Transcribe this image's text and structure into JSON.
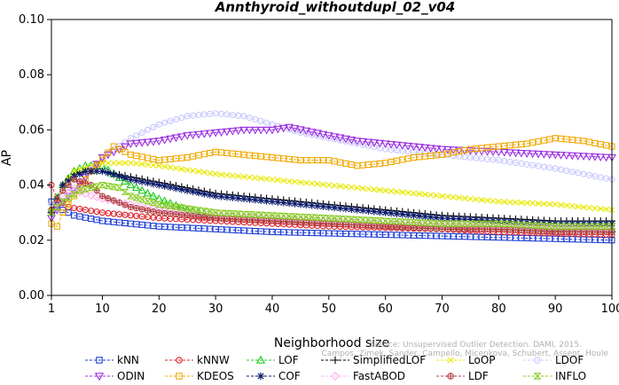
{
  "credit": {
    "line1": "Source: Unsupervised Outlier Detection. DAMI, 2015.",
    "line2": "Campos, Zimek, Sander, Campello, Micenkova, Schubert, Assent, Houle"
  },
  "chart_data": {
    "type": "line",
    "title": "Annthyroid_withoutdupl_02_v04",
    "xlabel": "Neighborhood size",
    "ylabel": "AP",
    "xlim": [
      1,
      100
    ],
    "ylim": [
      0.0,
      0.1
    ],
    "xticks": [
      1,
      10,
      20,
      30,
      40,
      50,
      60,
      70,
      80,
      90,
      100
    ],
    "yticks": [
      "0.00",
      "0.02",
      "0.04",
      "0.06",
      "0.08",
      "0.10"
    ],
    "grid": false,
    "legend_position": "bottom",
    "series": [
      {
        "name": "kNN",
        "color": "#1f3fd6",
        "marker": "square",
        "points": [
          [
            1,
            0.034
          ],
          [
            3,
            0.031
          ],
          [
            5,
            0.029
          ],
          [
            10,
            0.027
          ],
          [
            20,
            0.025
          ],
          [
            30,
            0.024
          ],
          [
            40,
            0.023
          ],
          [
            50,
            0.0225
          ],
          [
            60,
            0.022
          ],
          [
            70,
            0.0215
          ],
          [
            80,
            0.021
          ],
          [
            90,
            0.0205
          ],
          [
            100,
            0.02
          ]
        ]
      },
      {
        "name": "kNNW",
        "color": "#e0202a",
        "marker": "circle",
        "points": [
          [
            1,
            0.04
          ],
          [
            2,
            0.035
          ],
          [
            4,
            0.032
          ],
          [
            10,
            0.03
          ],
          [
            20,
            0.028
          ],
          [
            30,
            0.027
          ],
          [
            40,
            0.026
          ],
          [
            50,
            0.025
          ],
          [
            60,
            0.0245
          ],
          [
            70,
            0.024
          ],
          [
            80,
            0.023
          ],
          [
            90,
            0.0225
          ],
          [
            100,
            0.022
          ]
        ]
      },
      {
        "name": "LOF",
        "color": "#22cc22",
        "marker": "triangle-up",
        "points": [
          [
            1,
            0.031
          ],
          [
            3,
            0.04
          ],
          [
            5,
            0.045
          ],
          [
            7,
            0.047
          ],
          [
            10,
            0.047
          ],
          [
            12,
            0.044
          ],
          [
            15,
            0.04
          ],
          [
            20,
            0.035
          ],
          [
            25,
            0.031
          ],
          [
            30,
            0.029
          ],
          [
            40,
            0.028
          ],
          [
            50,
            0.027
          ],
          [
            60,
            0.026
          ],
          [
            70,
            0.025
          ],
          [
            80,
            0.025
          ],
          [
            90,
            0.024
          ],
          [
            100,
            0.024
          ]
        ]
      },
      {
        "name": "SimplifiedLOF",
        "color": "#000000",
        "marker": "plus",
        "points": [
          [
            1,
            0.03
          ],
          [
            3,
            0.04
          ],
          [
            5,
            0.044
          ],
          [
            7,
            0.045
          ],
          [
            10,
            0.045
          ],
          [
            15,
            0.043
          ],
          [
            20,
            0.041
          ],
          [
            30,
            0.037
          ],
          [
            40,
            0.035
          ],
          [
            50,
            0.033
          ],
          [
            60,
            0.031
          ],
          [
            70,
            0.029
          ],
          [
            80,
            0.028
          ],
          [
            90,
            0.027
          ],
          [
            100,
            0.027
          ]
        ]
      },
      {
        "name": "LoOP",
        "color": "#e8e800",
        "marker": "x",
        "points": [
          [
            1,
            0.031
          ],
          [
            3,
            0.04
          ],
          [
            5,
            0.045
          ],
          [
            10,
            0.048
          ],
          [
            15,
            0.048
          ],
          [
            20,
            0.047
          ],
          [
            30,
            0.044
          ],
          [
            40,
            0.042
          ],
          [
            50,
            0.04
          ],
          [
            60,
            0.038
          ],
          [
            70,
            0.036
          ],
          [
            80,
            0.034
          ],
          [
            90,
            0.033
          ],
          [
            100,
            0.031
          ]
        ]
      },
      {
        "name": "LDOF",
        "color": "#c8c8ff",
        "marker": "circle",
        "points": [
          [
            1,
            0.033
          ],
          [
            5,
            0.039
          ],
          [
            10,
            0.05
          ],
          [
            15,
            0.057
          ],
          [
            20,
            0.062
          ],
          [
            25,
            0.065
          ],
          [
            30,
            0.066
          ],
          [
            35,
            0.065
          ],
          [
            40,
            0.062
          ],
          [
            45,
            0.059
          ],
          [
            50,
            0.057
          ],
          [
            55,
            0.055
          ],
          [
            60,
            0.053
          ],
          [
            65,
            0.052
          ],
          [
            70,
            0.051
          ],
          [
            80,
            0.049
          ],
          [
            90,
            0.046
          ],
          [
            100,
            0.042
          ]
        ]
      },
      {
        "name": "ODIN",
        "color": "#9b30e0",
        "marker": "triangle-down",
        "points": [
          [
            1,
            0.028
          ],
          [
            3,
            0.034
          ],
          [
            5,
            0.038
          ],
          [
            10,
            0.05
          ],
          [
            15,
            0.055
          ],
          [
            20,
            0.056
          ],
          [
            25,
            0.058
          ],
          [
            30,
            0.059
          ],
          [
            35,
            0.06
          ],
          [
            40,
            0.06
          ],
          [
            43,
            0.061
          ],
          [
            50,
            0.058
          ],
          [
            55,
            0.056
          ],
          [
            60,
            0.055
          ],
          [
            70,
            0.053
          ],
          [
            80,
            0.052
          ],
          [
            90,
            0.051
          ],
          [
            100,
            0.05
          ]
        ]
      },
      {
        "name": "KDEOS",
        "color": "#f0a800",
        "marker": "square",
        "points": [
          [
            1,
            0.026
          ],
          [
            2,
            0.025
          ],
          [
            3,
            0.03
          ],
          [
            5,
            0.036
          ],
          [
            8,
            0.045
          ],
          [
            12,
            0.054
          ],
          [
            15,
            0.051
          ],
          [
            20,
            0.049
          ],
          [
            25,
            0.05
          ],
          [
            30,
            0.052
          ],
          [
            35,
            0.051
          ],
          [
            40,
            0.05
          ],
          [
            45,
            0.049
          ],
          [
            50,
            0.049
          ],
          [
            55,
            0.047
          ],
          [
            60,
            0.048
          ],
          [
            65,
            0.05
          ],
          [
            70,
            0.051
          ],
          [
            75,
            0.053
          ],
          [
            80,
            0.054
          ],
          [
            85,
            0.055
          ],
          [
            90,
            0.057
          ],
          [
            95,
            0.056
          ],
          [
            100,
            0.054
          ]
        ]
      },
      {
        "name": "COF",
        "color": "#0a1a6a",
        "marker": "asterisk",
        "points": [
          [
            1,
            0.03
          ],
          [
            3,
            0.04
          ],
          [
            5,
            0.043
          ],
          [
            7,
            0.045
          ],
          [
            10,
            0.045
          ],
          [
            15,
            0.042
          ],
          [
            20,
            0.04
          ],
          [
            30,
            0.036
          ],
          [
            40,
            0.034
          ],
          [
            50,
            0.032
          ],
          [
            60,
            0.03
          ],
          [
            70,
            0.028
          ],
          [
            80,
            0.027
          ],
          [
            90,
            0.026
          ],
          [
            100,
            0.026
          ]
        ]
      },
      {
        "name": "FastABOD",
        "color": "#ffb0f0",
        "marker": "diamond",
        "points": [
          [
            1,
            0.031
          ],
          [
            3,
            0.036
          ],
          [
            5,
            0.038
          ],
          [
            10,
            0.035
          ],
          [
            20,
            0.031
          ],
          [
            30,
            0.029
          ],
          [
            40,
            0.028
          ],
          [
            50,
            0.027
          ],
          [
            60,
            0.026
          ],
          [
            70,
            0.0255
          ],
          [
            80,
            0.025
          ],
          [
            90,
            0.0245
          ],
          [
            100,
            0.024
          ]
        ]
      },
      {
        "name": "LDF",
        "color": "#b04040",
        "marker": "circle-plus",
        "points": [
          [
            1,
            0.031
          ],
          [
            3,
            0.038
          ],
          [
            5,
            0.042
          ],
          [
            8,
            0.04
          ],
          [
            10,
            0.036
          ],
          [
            15,
            0.032
          ],
          [
            20,
            0.03
          ],
          [
            30,
            0.028
          ],
          [
            40,
            0.027
          ],
          [
            50,
            0.026
          ],
          [
            60,
            0.025
          ],
          [
            70,
            0.024
          ],
          [
            80,
            0.024
          ],
          [
            90,
            0.023
          ],
          [
            100,
            0.023
          ]
        ]
      },
      {
        "name": "INFLO",
        "color": "#88cc22",
        "marker": "hourglass",
        "points": [
          [
            1,
            0.03
          ],
          [
            3,
            0.034
          ],
          [
            6,
            0.038
          ],
          [
            10,
            0.04
          ],
          [
            13,
            0.039
          ],
          [
            15,
            0.036
          ],
          [
            20,
            0.033
          ],
          [
            30,
            0.03
          ],
          [
            40,
            0.029
          ],
          [
            50,
            0.028
          ],
          [
            60,
            0.027
          ],
          [
            70,
            0.026
          ],
          [
            80,
            0.026
          ],
          [
            90,
            0.025
          ],
          [
            100,
            0.025
          ]
        ]
      }
    ]
  }
}
